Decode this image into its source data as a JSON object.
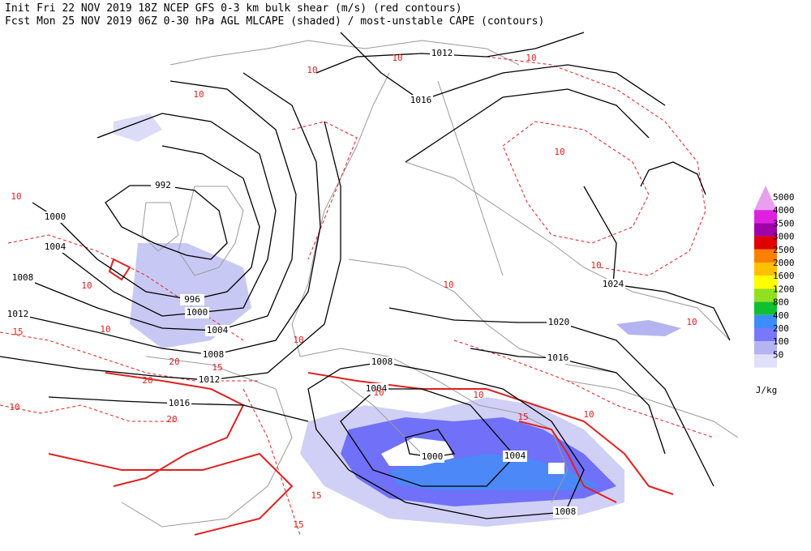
{
  "header": {
    "line1": "Init  Fri 22 NOV 2019 18Z   NCEP GFS 0-3 km bulk shear (m/s) (red contours)",
    "line2": "Fcst Mon 25 NOV 2019 06Z  0-30 hPa AGL MLCAPE (shaded) / most-unstable CAPE (contours)"
  },
  "legend": {
    "unit": "J/kg",
    "levels": [
      {
        "label": "5000",
        "color": "#e8a0ee"
      },
      {
        "label": "4000",
        "color": "#e020e0"
      },
      {
        "label": "3500",
        "color": "#a000a8"
      },
      {
        "label": "3000",
        "color": "#e00000"
      },
      {
        "label": "2500",
        "color": "#ff8000"
      },
      {
        "label": "2000",
        "color": "#ffc000"
      },
      {
        "label": "1600",
        "color": "#ffff00"
      },
      {
        "label": "1200",
        "color": "#90e020"
      },
      {
        "label": "800",
        "color": "#10c030"
      },
      {
        "label": "400",
        "color": "#3c8cff"
      },
      {
        "label": "200",
        "color": "#7878ff"
      },
      {
        "label": "100",
        "color": "#b4b4f0"
      },
      {
        "label": "50",
        "color": "#e0e0fa"
      }
    ]
  },
  "isobar_labels": [
    "1012",
    "1016",
    "992",
    "1000",
    "1004",
    "1008",
    "1012",
    "996",
    "1000",
    "1004",
    "1008",
    "1012",
    "1016",
    "1024",
    "1020",
    "1016",
    "1008",
    "1004",
    "1000",
    "1004",
    "1008"
  ],
  "shear_labels": [
    "10",
    "10",
    "10",
    "10",
    "10",
    "10",
    "10",
    "10",
    "10",
    "10",
    "10",
    "15",
    "15",
    "15",
    "20",
    "20",
    "20",
    "10",
    "10",
    "10",
    "15",
    "10",
    "10",
    "15"
  ]
}
